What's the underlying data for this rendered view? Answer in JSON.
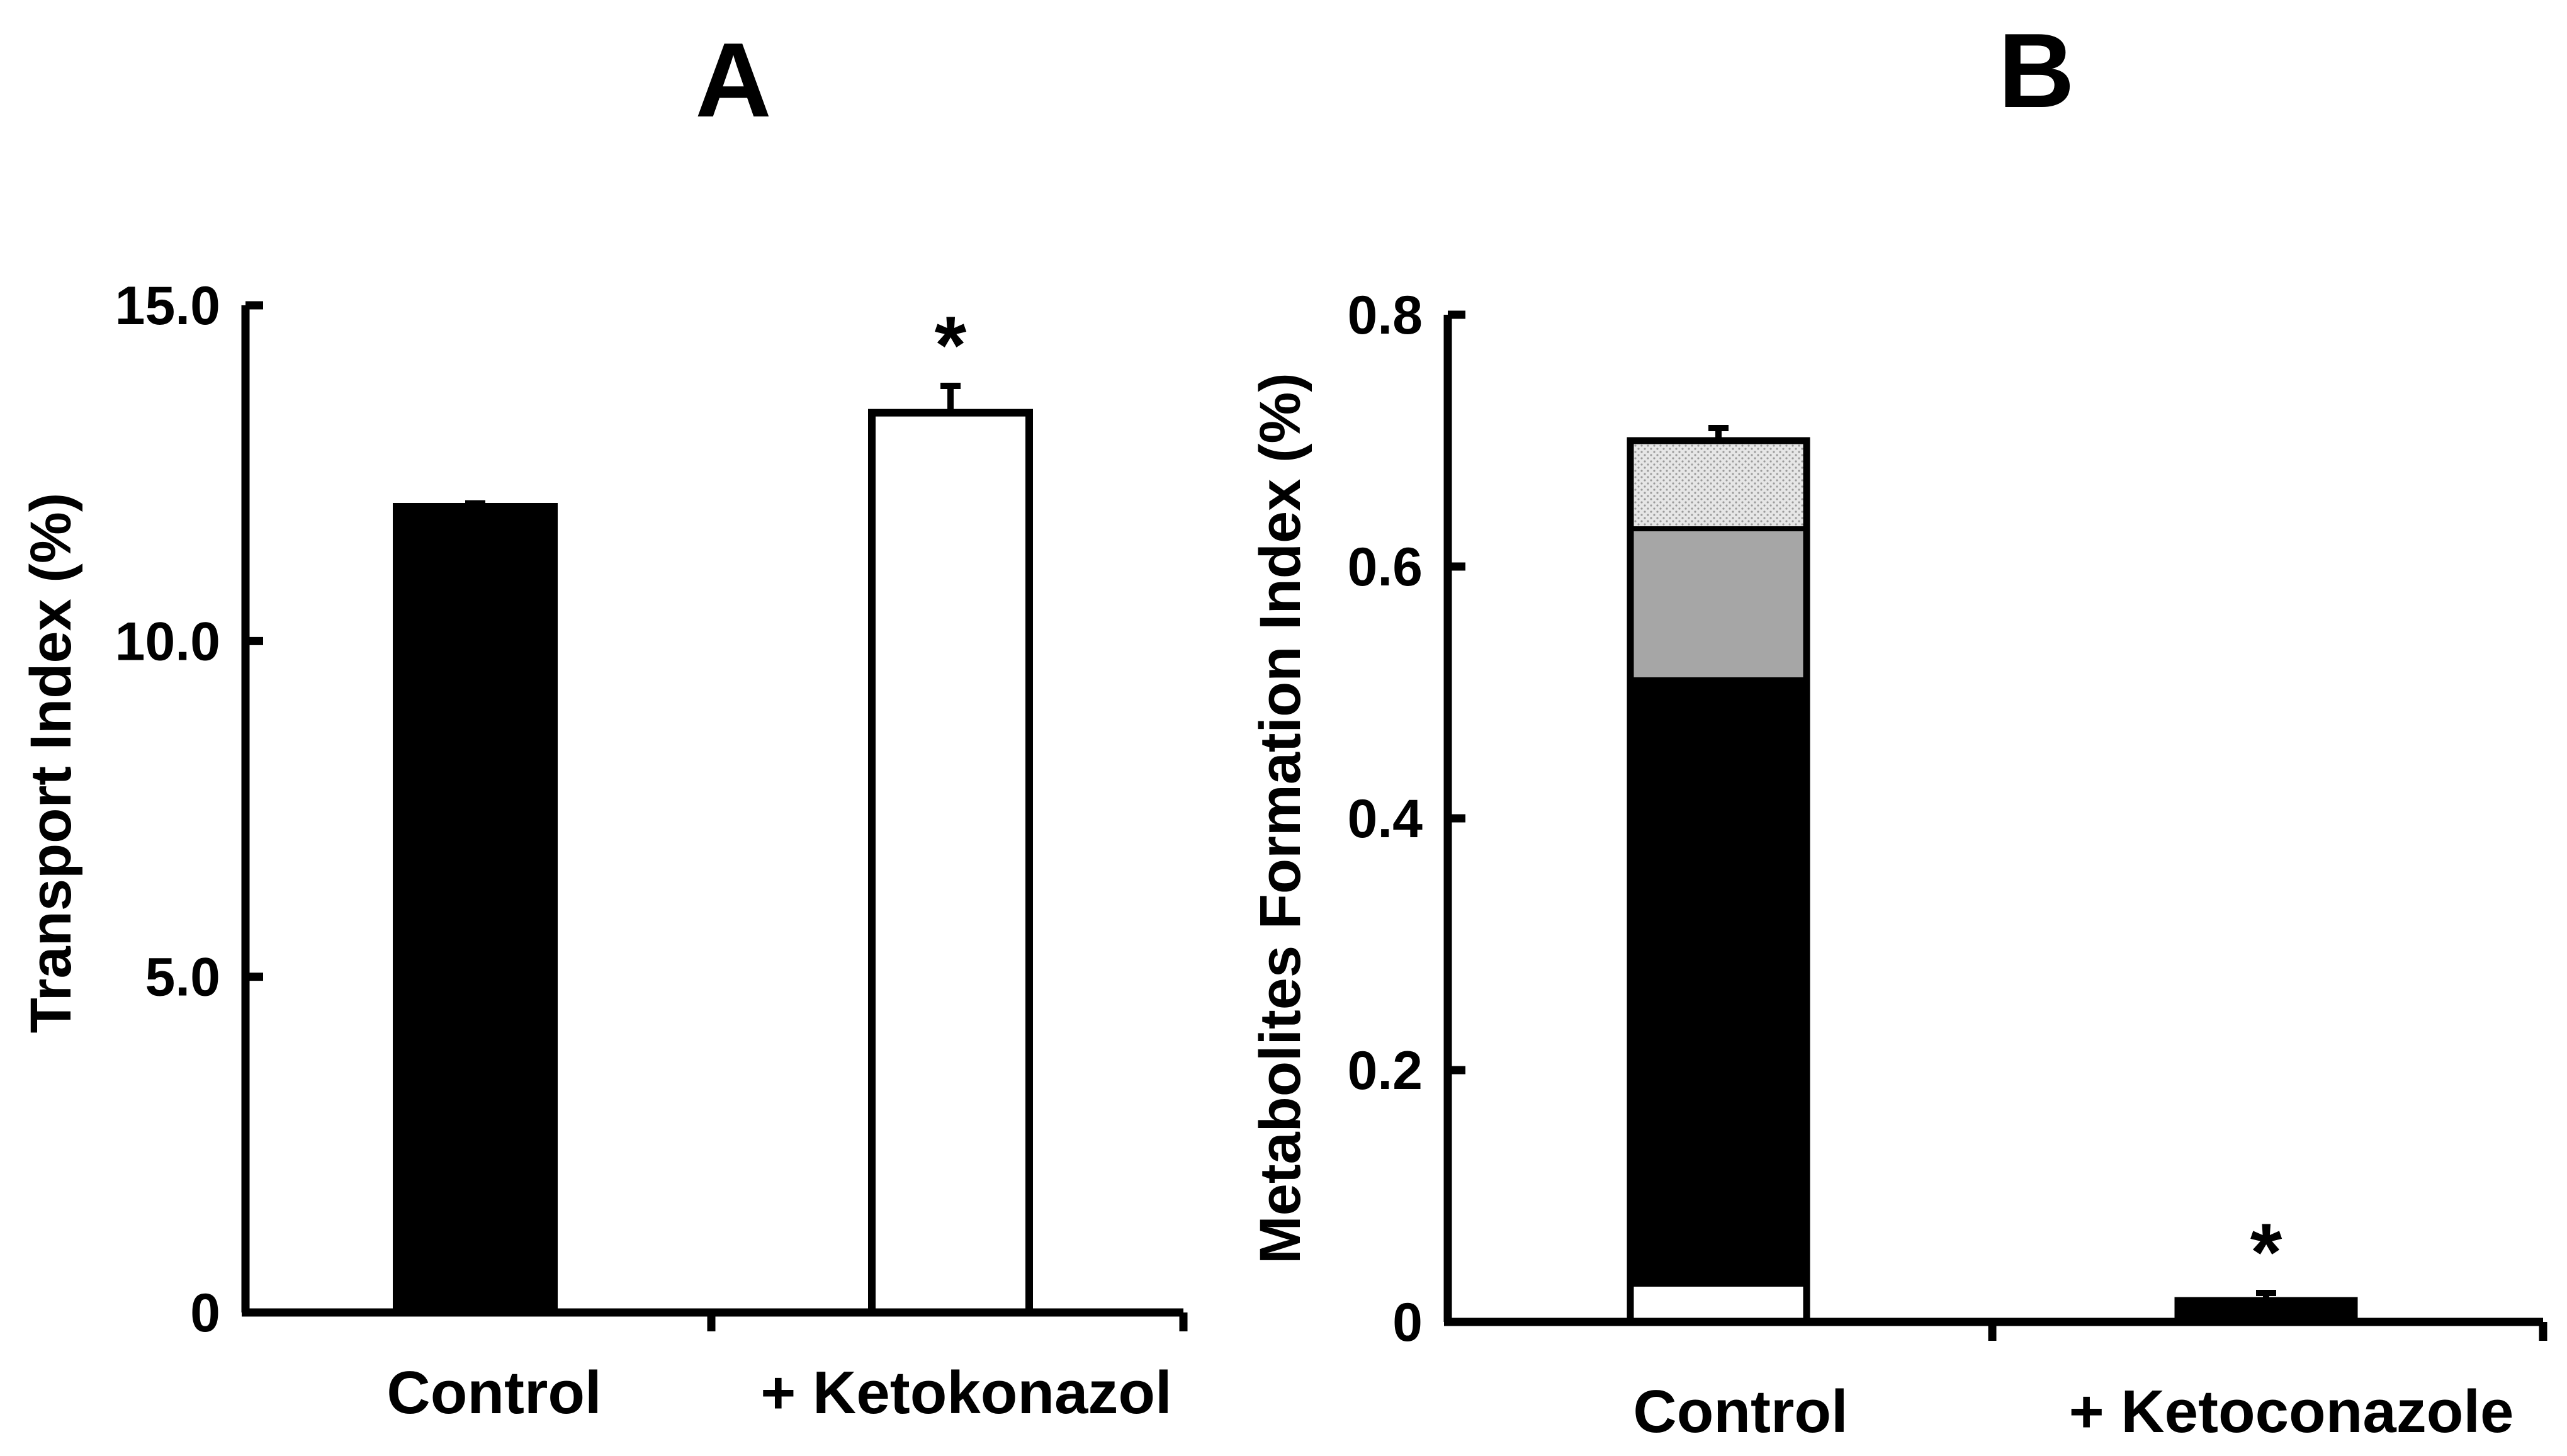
{
  "chart_data": [
    {
      "type": "bar",
      "panel_label": "A",
      "ylabel": "Transport Index (%)",
      "ylim": [
        0,
        15
      ],
      "y_ticks": [
        "0",
        "5.0",
        "10.0",
        "15.0"
      ],
      "y_tick_values": [
        0,
        5,
        10,
        15
      ],
      "categories": [
        "Control",
        "+ Ketokonazol"
      ],
      "values": [
        12.0,
        13.4
      ],
      "errors": [
        0.05,
        0.4
      ],
      "fills": [
        "#000000",
        "#ffffff"
      ],
      "significance": [
        "",
        "*"
      ]
    },
    {
      "type": "bar",
      "stacked": true,
      "panel_label": "B",
      "ylabel": "Metabolites Formation Index (%)",
      "ylim": [
        0,
        0.8
      ],
      "y_ticks": [
        "0",
        "0.2",
        "0.4",
        "0.6",
        "0.8"
      ],
      "y_tick_values": [
        0,
        0.2,
        0.4,
        0.6,
        0.8
      ],
      "categories": [
        "Control",
        "+ Ketoconazole"
      ],
      "series": [
        {
          "name": "",
          "fill": "#ffffff",
          "values": [
            0.03,
            0.003
          ]
        },
        {
          "name": "",
          "fill": "#000000",
          "values": [
            0.48,
            0.006
          ]
        },
        {
          "name": "",
          "fill": "#a6a6a6",
          "values": [
            0.12,
            0.004
          ]
        },
        {
          "name": "",
          "fill": "#d9d9d9",
          "values": [
            0.07,
            0.004
          ]
        }
      ],
      "totals": [
        0.7,
        0.017
      ],
      "errors": [
        0.01,
        0.006
      ],
      "significance": [
        "",
        "*"
      ]
    }
  ]
}
